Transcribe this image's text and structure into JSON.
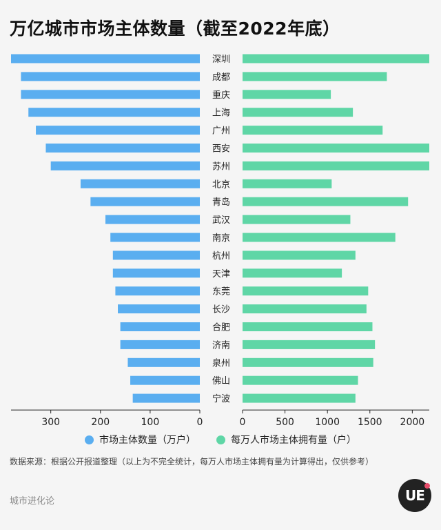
{
  "title": "万亿城市市场主体数量（截至2022年底）",
  "colors": {
    "left": "#5aaef0",
    "right": "#5fd6a6",
    "background": "#f5f5f5"
  },
  "chart_data": {
    "type": "bar",
    "orientation": "horizontal-butterfly",
    "categories": [
      "深圳",
      "成都",
      "重庆",
      "上海",
      "广州",
      "西安",
      "苏州",
      "北京",
      "青岛",
      "武汉",
      "南京",
      "杭州",
      "天津",
      "东莞",
      "长沙",
      "合肥",
      "济南",
      "泉州",
      "佛山",
      "宁波"
    ],
    "series": [
      {
        "name": "市场主体数量（万户）",
        "axis": "left",
        "values": [
          380,
          360,
          360,
          345,
          330,
          310,
          300,
          240,
          220,
          190,
          180,
          175,
          175,
          170,
          165,
          160,
          160,
          145,
          140,
          135
        ],
        "xlim": [
          0,
          380
        ],
        "ticks": [
          300,
          200,
          100,
          0
        ]
      },
      {
        "name": "每万人市场主体拥有量（户）",
        "axis": "right",
        "values": [
          2200,
          1700,
          1040,
          1300,
          1650,
          2200,
          2200,
          1050,
          1950,
          1270,
          1800,
          1330,
          1170,
          1480,
          1460,
          1530,
          1560,
          1540,
          1360,
          1330
        ],
        "xlim": [
          0,
          2200
        ],
        "ticks": [
          0,
          500,
          1000,
          1500,
          2000
        ]
      }
    ],
    "grid": false,
    "legend_position": "bottom"
  },
  "source_note": "数据来源：根据公开报道整理（以上为不完全统计，每万人市场主体拥有量为计算得出，仅供参考）",
  "brand": "城市进化论",
  "logo_text": "UE"
}
